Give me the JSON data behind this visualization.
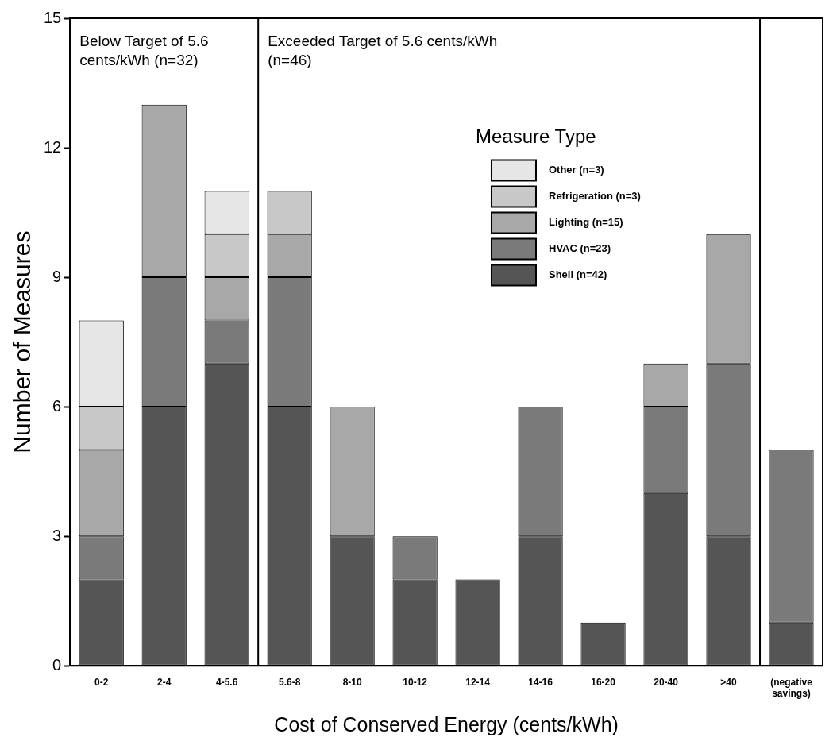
{
  "chart_data": {
    "type": "bar",
    "stacked": true,
    "xlabel": "Cost of Conserved Energy (cents/kWh)",
    "ylabel": "Number of Measures",
    "legend_title": "Measure Type",
    "legend": "top right",
    "categories": [
      "0-2",
      "2-4",
      "4-5.6",
      "5.6-8",
      "8-10",
      "10-12",
      "12-14",
      "14-16",
      "16-20",
      "20-40",
      ">40",
      "(negative savings)"
    ],
    "series": [
      {
        "name": "Shell (n=42)",
        "color": "#555555",
        "values": [
          2,
          6,
          7,
          6,
          3,
          2,
          2,
          3,
          1,
          4,
          3,
          1
        ]
      },
      {
        "name": "HVAC (n=23)",
        "color": "#7a7a7a",
        "values": [
          1,
          3,
          1,
          3,
          null,
          1,
          null,
          3,
          null,
          2,
          4,
          4
        ]
      },
      {
        "name": "Lighting (n=15)",
        "color": "#a8a8a8",
        "values": [
          2,
          4,
          1,
          1,
          3,
          null,
          null,
          null,
          null,
          1,
          3,
          null
        ]
      },
      {
        "name": "Refrigeration (n=3)",
        "color": "#c8c8c8",
        "values": [
          1,
          null,
          1,
          1,
          null,
          null,
          null,
          null,
          null,
          null,
          null,
          null
        ]
      },
      {
        "name": "Other (n=3)",
        "color": "#e6e6e6",
        "values": [
          2,
          null,
          1,
          null,
          null,
          null,
          null,
          null,
          null,
          null,
          null,
          null
        ]
      }
    ],
    "ylim": [
      0,
      15
    ],
    "yticks": [
      0,
      3,
      6,
      9,
      12,
      15
    ],
    "grid": false,
    "annotations": [
      "Below Target of 5.6 cents/kWh (n=32)",
      "Exceeded Target of 5.6 cents/kWh (n=46)"
    ]
  }
}
